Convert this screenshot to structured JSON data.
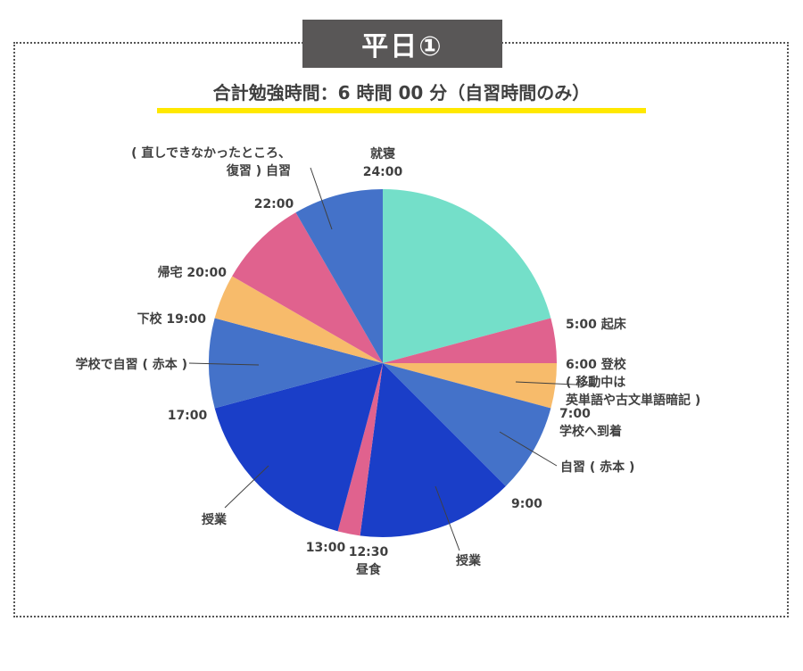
{
  "header": {
    "badge": "平日①",
    "subtitle": "合計勉強時間：6 時間 00 分（自習時間のみ）"
  },
  "chart_data": {
    "type": "pie",
    "title": "平日①",
    "subtitle": "合計勉強時間：6 時間 00 分（自習時間のみ）",
    "unit": "hours (24h clock)",
    "start_time": "0:00",
    "slices": [
      {
        "from": "0:00",
        "to": "5:00",
        "hours": 5,
        "color": "#74dfc9"
      },
      {
        "from": "5:00",
        "to": "6:00",
        "hours": 1,
        "color": "#e0628e"
      },
      {
        "from": "6:00",
        "to": "7:00",
        "hours": 1,
        "color": "#f7bb6b"
      },
      {
        "from": "7:00",
        "to": "9:00",
        "hours": 2,
        "color": "#4472c9"
      },
      {
        "from": "9:00",
        "to": "12:30",
        "hours": 3.5,
        "color": "#1a3ec8"
      },
      {
        "from": "12:30",
        "to": "13:00",
        "hours": 0.5,
        "color": "#e0628e"
      },
      {
        "from": "13:00",
        "to": "17:00",
        "hours": 4,
        "color": "#1a3ec8"
      },
      {
        "from": "17:00",
        "to": "19:00",
        "hours": 2,
        "color": "#4472c9"
      },
      {
        "from": "19:00",
        "to": "20:00",
        "hours": 1,
        "color": "#f7bb6b"
      },
      {
        "from": "20:00",
        "to": "22:00",
        "hours": 2,
        "color": "#e0628e"
      },
      {
        "from": "22:00",
        "to": "24:00",
        "hours": 2,
        "color": "#4472c9"
      }
    ],
    "labels": [
      {
        "id": "l1",
        "lines": [
          "就寝",
          "24:00"
        ]
      },
      {
        "id": "l2",
        "lines": [
          "5:00  起床"
        ]
      },
      {
        "id": "l3",
        "lines": [
          "6:00  登校",
          "( 移動中は",
          "英単語や古文単語暗記 )"
        ]
      },
      {
        "id": "l4",
        "lines": [
          "7:00",
          "学校へ到着"
        ]
      },
      {
        "id": "l5",
        "lines": [
          "自習 ( 赤本 )"
        ]
      },
      {
        "id": "l6",
        "lines": [
          "9:00"
        ]
      },
      {
        "id": "l7",
        "lines": [
          "授業"
        ]
      },
      {
        "id": "l8",
        "lines": [
          "12:30",
          "昼食"
        ]
      },
      {
        "id": "l9",
        "lines": [
          "13:00"
        ]
      },
      {
        "id": "l10",
        "lines": [
          "授業"
        ]
      },
      {
        "id": "l11",
        "lines": [
          "17:00"
        ]
      },
      {
        "id": "l12",
        "lines": [
          "学校で自習 ( 赤本 )"
        ]
      },
      {
        "id": "l13",
        "lines": [
          "下校  19:00"
        ]
      },
      {
        "id": "l14",
        "lines": [
          "帰宅  20:00"
        ]
      },
      {
        "id": "l15",
        "lines": [
          "22:00"
        ]
      },
      {
        "id": "l16",
        "lines": [
          "( 直しできなかったところ、",
          "復習 ) 自習"
        ]
      }
    ]
  }
}
